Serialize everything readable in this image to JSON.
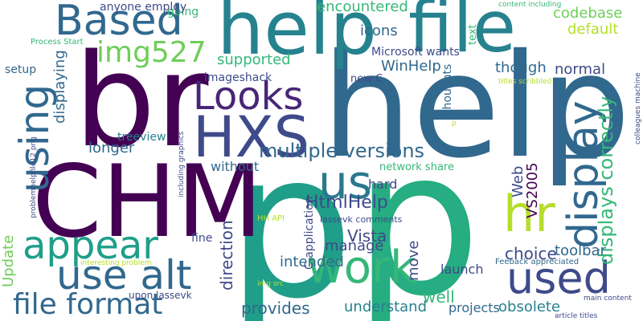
{
  "palette": {
    "dark_purple": "#440154",
    "indigo": "#3e4a89",
    "blue": "#31688e",
    "teal": "#26828e",
    "green": "#1f9e89",
    "jade": "#35b779",
    "lime": "#6ece58",
    "yellow_green": "#b5de2b"
  },
  "words": [
    {
      "text": "p"
    },
    {
      "text": "p"
    },
    {
      "text": "help"
    },
    {
      "text": "br"
    },
    {
      "text": "CHM"
    },
    {
      "text": "help"
    },
    {
      "text": "file"
    },
    {
      "text": "HXS"
    },
    {
      "text": "Looks"
    },
    {
      "text": "Based"
    },
    {
      "text": "work"
    },
    {
      "text": "used"
    },
    {
      "text": "use alt"
    },
    {
      "text": "appear"
    },
    {
      "text": "using"
    },
    {
      "text": "display"
    },
    {
      "text": "us"
    },
    {
      "text": "hr"
    },
    {
      "text": "file format"
    },
    {
      "text": "img527"
    },
    {
      "text": "multiple versions"
    },
    {
      "text": "displays correctly"
    },
    {
      "text": "codebase"
    },
    {
      "text": "default"
    },
    {
      "text": "encountered"
    },
    {
      "text": "icons"
    },
    {
      "text": "going"
    },
    {
      "text": "anyone employ"
    },
    {
      "text": "Microsoft wants"
    },
    {
      "text": "WinHelp"
    },
    {
      "text": "though"
    },
    {
      "text": "normal"
    },
    {
      "text": "supported"
    },
    {
      "text": "setup"
    },
    {
      "text": "displaying"
    },
    {
      "text": "imageshack"
    },
    {
      "text": "new C"
    },
    {
      "text": "longer"
    },
    {
      "text": "treeview"
    },
    {
      "text": "without"
    },
    {
      "text": "network share"
    },
    {
      "text": "hard"
    },
    {
      "text": "HtmlHelp"
    },
    {
      "text": "Vista"
    },
    {
      "text": "manage"
    },
    {
      "text": "direction"
    },
    {
      "text": "intended"
    },
    {
      "text": "move"
    },
    {
      "text": "choice"
    },
    {
      "text": "toolbar"
    },
    {
      "text": "launch"
    },
    {
      "text": "well"
    },
    {
      "text": "understand"
    },
    {
      "text": "provides"
    },
    {
      "text": "projects"
    },
    {
      "text": "obsolete"
    },
    {
      "text": "Update"
    },
    {
      "text": "fine"
    },
    {
      "text": "upon lassevk"
    },
    {
      "text": "Web"
    },
    {
      "text": "VS2005"
    },
    {
      "text": "C application"
    },
    {
      "text": "lassevk comments"
    },
    {
      "text": "HH API"
    },
    {
      "text": "thoughts"
    },
    {
      "text": "text"
    },
    {
      "text": "content including"
    },
    {
      "text": "Process Start"
    },
    {
      "text": "titles scribbled"
    },
    {
      "text": "colleagues machine"
    },
    {
      "text": "problemhelpfile12 png"
    },
    {
      "text": "including graphics"
    },
    {
      "text": "interesting problem"
    },
    {
      "text": "img src"
    },
    {
      "text": "Feeback appreciated"
    },
    {
      "text": "main content"
    },
    {
      "text": "article titles"
    },
    {
      "text": "p"
    }
  ]
}
